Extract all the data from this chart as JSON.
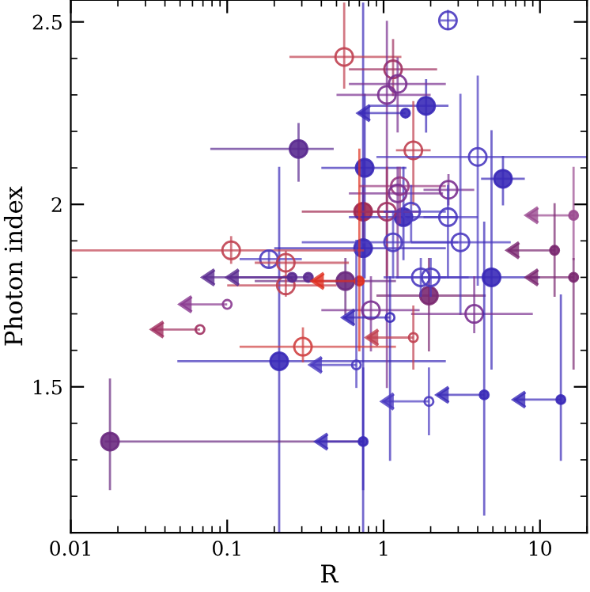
{
  "chart_data": {
    "type": "scatter",
    "xlabel": "R",
    "ylabel": "Photon index",
    "log": "x",
    "xlim": [
      0.01,
      20
    ],
    "ylim": [
      1.1,
      2.56
    ],
    "xticks": [
      {
        "value": 0.01,
        "label": "0.01"
      },
      {
        "value": 0.1,
        "label": "0.1"
      },
      {
        "value": 1,
        "label": "1"
      },
      {
        "value": 10,
        "label": "10"
      }
    ],
    "yticks": [
      1.5,
      2,
      2.5
    ],
    "grid": false,
    "legend": false,
    "series": [
      {
        "marker": "circle",
        "colors": [
          "#3a2ab8",
          "#5a2a90",
          "#3a2ab8",
          "#3a2ab8",
          "#a02850",
          "#3a2ab8",
          "#3a2ab8",
          "#6a2a80",
          "#3a2ab8",
          "#7a2870",
          "#3a2ab8",
          "#6a2a80"
        ],
        "x": [
          1.87,
          0.286,
          0.757,
          5.8,
          0.74,
          1.34,
          0.74,
          0.57,
          4.9,
          1.95,
          0.215,
          0.0178
        ],
        "values": [
          2.27,
          2.152,
          2.1,
          2.07,
          1.98,
          1.965,
          1.88,
          1.79,
          1.8,
          1.75,
          1.57,
          1.35
        ],
        "xerrors": [
          [
            0.8,
            2.6
          ],
          [
            0.078,
            0.48
          ],
          [
            0.4,
            1.4
          ],
          [
            4.2,
            8.0
          ],
          [
            0.3,
            1.5
          ],
          [
            0.6,
            3.0
          ],
          [
            0.2,
            2.5
          ],
          [
            0.15,
            1.2
          ],
          [
            2.0,
            10
          ],
          [
            0.9,
            4.5
          ],
          [
            0.048,
            2.5
          ],
          [
            0.0165,
            0.74
          ]
        ],
        "errors": [
          [
            2.2,
            2.34
          ],
          [
            2.065,
            2.22
          ],
          [
            1.8,
            2.3
          ],
          [
            2.0,
            2.13
          ],
          [
            1.9,
            2.05
          ],
          [
            1.85,
            2.1
          ],
          [
            1.1,
            2.55
          ],
          [
            1.7,
            1.85
          ],
          [
            1.55,
            2.2
          ],
          [
            1.6,
            1.85
          ],
          [
            1.1,
            2.1
          ],
          [
            1.22,
            1.52
          ]
        ]
      },
      {
        "marker": "open circle",
        "colors": [
          "#4a3ac0",
          "#c04050",
          "#a03060",
          "#7a3090",
          "#7a3090",
          "#c04050",
          "#4a3ac0",
          "#9a3a80",
          "#7a3090",
          "#7a3090",
          "#a03060",
          "#4a3ac0",
          "#4a3ac0",
          "#4a3ac0",
          "#4a3ac0",
          "#c04050",
          "#4a3ac0",
          "#c04050",
          "#4a3ac0",
          "#4a3ac0",
          "#c04050",
          "#7a3090",
          "#7a3090",
          "#d04040"
        ],
        "x": [
          2.58,
          0.56,
          1.15,
          1.23,
          1.05,
          1.55,
          4.0,
          1.27,
          1.23,
          2.6,
          1.05,
          1.5,
          2.58,
          1.15,
          3.1,
          0.106,
          0.185,
          0.237,
          1.73,
          2.0,
          0.237,
          0.83,
          3.8,
          0.305
        ],
        "values": [
          2.504,
          2.404,
          2.37,
          2.33,
          2.3,
          2.148,
          2.13,
          2.05,
          2.03,
          2.04,
          1.98,
          1.98,
          1.965,
          1.896,
          1.896,
          1.874,
          1.85,
          1.84,
          1.8,
          1.8,
          1.778,
          1.71,
          1.7,
          1.61
        ],
        "xerrors": [
          [
            2.3,
            2.9
          ],
          [
            0.25,
            1.3
          ],
          [
            0.6,
            2.2
          ],
          [
            0.6,
            2.5
          ],
          [
            0.5,
            2.0
          ],
          [
            1.2,
            2.0
          ],
          [
            0.9,
            20
          ],
          [
            0.7,
            2.5
          ],
          [
            0.6,
            2.4
          ],
          [
            1.8,
            3.8
          ],
          [
            0.7,
            1.7
          ],
          [
            1.0,
            2.5
          ],
          [
            1.8,
            4.0
          ],
          [
            0.3,
            3.0
          ],
          [
            1.5,
            6.5
          ],
          [
            0.01,
            0.75
          ],
          [
            0.12,
            0.3
          ],
          [
            0.15,
            0.6
          ],
          [
            1.0,
            2.5
          ],
          [
            1.2,
            3.5
          ],
          [
            0.1,
            0.5
          ],
          [
            0.4,
            1.7
          ],
          [
            1.5,
            9.0
          ],
          [
            0.12,
            1.2
          ]
        ],
        "errors": [
          [
            2.48,
            2.53
          ],
          [
            2.32,
            2.55
          ],
          [
            2.3,
            2.45
          ],
          [
            2.2,
            2.4
          ],
          [
            1.5,
            2.5
          ],
          [
            2.0,
            2.28
          ],
          [
            1.78,
            2.35
          ],
          [
            1.95,
            2.1
          ],
          [
            1.8,
            2.1
          ],
          [
            2.0,
            2.08
          ],
          [
            1.8,
            2.1
          ],
          [
            1.9,
            2.05
          ],
          [
            1.8,
            2.05
          ],
          [
            1.8,
            1.98
          ],
          [
            1.7,
            2.3
          ],
          [
            1.84,
            1.91
          ],
          [
            1.83,
            1.87
          ],
          [
            1.8,
            1.87
          ],
          [
            1.75,
            1.85
          ],
          [
            1.75,
            1.85
          ],
          [
            1.75,
            1.8
          ],
          [
            1.6,
            1.8
          ],
          [
            1.65,
            1.8
          ],
          [
            1.57,
            1.66
          ]
        ]
      },
      {
        "marker": "circle",
        "colors": [
          "#3a2ab8",
          "#9a4a90",
          "#7a2870",
          "#7a2870",
          "#5a2a90",
          "#5a2a90",
          "#e03020",
          "#3a2ab8",
          "#3a2ab8",
          "#3a2ab8"
        ],
        "x": [
          1.38,
          16.4,
          12.4,
          16.4,
          0.26,
          0.33,
          0.7,
          4.4,
          13.6,
          0.74
        ],
        "values": [
          2.25,
          1.97,
          1.874,
          1.8,
          1.8,
          1.8,
          1.79,
          1.478,
          1.465,
          1.35
        ],
        "xerrors": [
          [
            0.69,
            1.38
          ],
          [
            8.2,
            16.4
          ],
          [
            6.2,
            12.4
          ],
          [
            8.2,
            16.4
          ],
          [
            0.07,
            0.26
          ],
          [
            0.1,
            0.33
          ],
          [
            0.35,
            0.7
          ],
          [
            2.2,
            4.4
          ],
          [
            6.8,
            13.6
          ],
          [
            0.37,
            0.74
          ]
        ],
        "errors": [
          null,
          [
            1.85,
            2.1
          ],
          [
            1.75,
            2.0
          ],
          [
            1.55,
            1.85
          ],
          null,
          null,
          [
            1.6,
            2.15
          ],
          [
            1.15,
            1.95
          ],
          [
            1.3,
            1.75
          ],
          [
            1.22,
            1.55
          ]
        ]
      },
      {
        "marker": "open circle",
        "colors": [
          "#3a2ab8",
          "#8a3a90",
          "#a03060",
          "#c04050",
          "#4a3ac0",
          "#4a3ac0"
        ],
        "x": [
          1.1,
          0.1,
          0.067,
          1.55,
          0.67,
          1.95
        ],
        "values": [
          1.69,
          1.726,
          1.657,
          1.635,
          1.56,
          1.46
        ],
        "xerrors": [
          [
            0.55,
            1.1
          ],
          [
            0.05,
            0.1
          ],
          [
            0.033,
            0.067
          ],
          [
            0.78,
            1.55
          ],
          [
            0.34,
            0.67
          ],
          [
            0.98,
            1.95
          ]
        ],
        "errors": [
          [
            1.3,
            1.8
          ],
          null,
          null,
          [
            1.55,
            1.72
          ],
          [
            1.5,
            1.9
          ],
          [
            1.37,
            1.55
          ]
        ]
      }
    ]
  }
}
